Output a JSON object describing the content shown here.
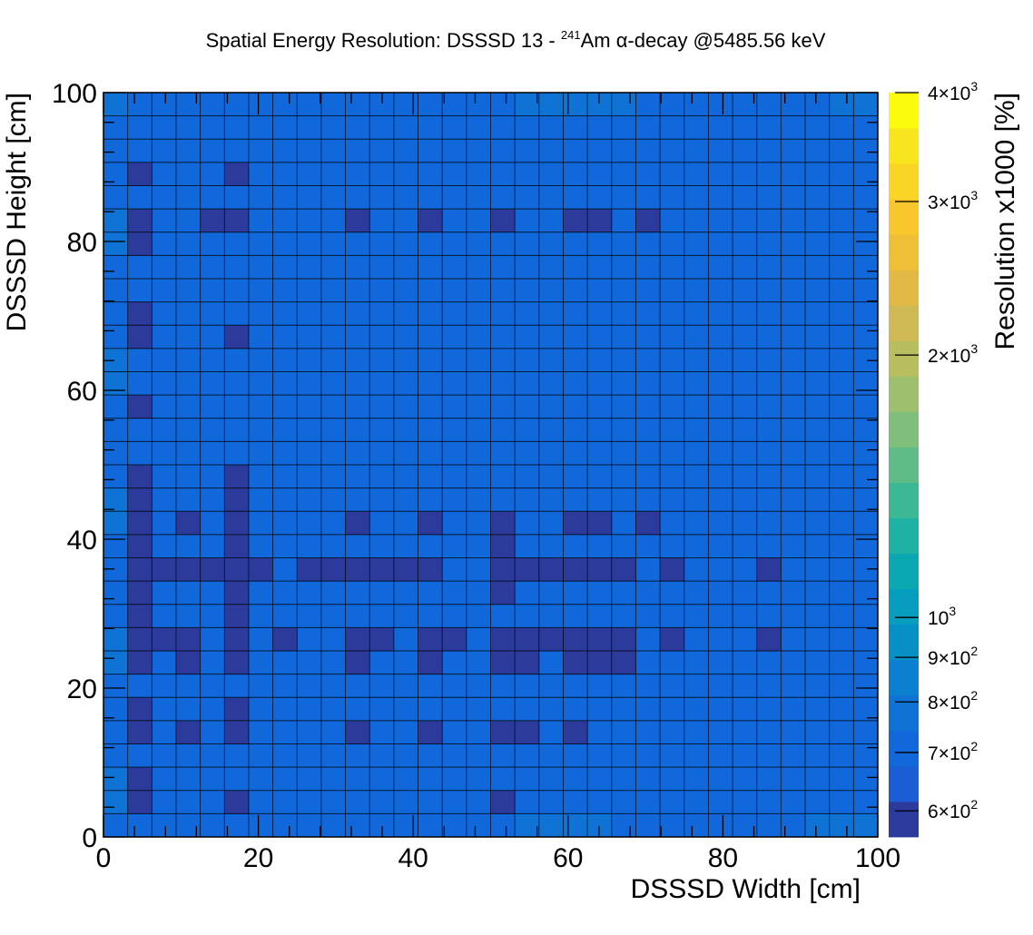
{
  "chart_data": {
    "type": "heatmap",
    "title": {
      "prefix": "Spatial Energy Resolution: DSSSD 13 - ",
      "isotope_mass": "241",
      "isotope_symbol": "Am",
      "suffix": " α-decay @5485.56 keV"
    },
    "xlabel": "DSSSD Width [cm]",
    "ylabel": "DSSSD Height [cm]",
    "zlabel": "Resolution x1000 [%]",
    "xlim": [
      0,
      100
    ],
    "ylim": [
      0,
      100
    ],
    "x_ticks": [
      "0",
      "20",
      "40",
      "60",
      "80",
      "100"
    ],
    "y_ticks": [
      "0",
      "20",
      "40",
      "60",
      "80",
      "100"
    ],
    "zscale": "log",
    "zlim": [
      560,
      4000
    ],
    "z_ticks": [
      {
        "value": 600,
        "mantissa": "6",
        "exp": "2"
      },
      {
        "value": 700,
        "mantissa": "7",
        "exp": "2"
      },
      {
        "value": 800,
        "mantissa": "8",
        "exp": "2"
      },
      {
        "value": 900,
        "mantissa": "9",
        "exp": "2"
      },
      {
        "value": 1000,
        "mantissa": "",
        "exp": "3"
      },
      {
        "value": 2000,
        "mantissa": "2",
        "exp": "3"
      },
      {
        "value": 3000,
        "mantissa": "3",
        "exp": "3"
      },
      {
        "value": 4000,
        "mantissa": "4",
        "exp": "3"
      }
    ],
    "colormap": "parula",
    "palette_colors": [
      "#2b3a9b",
      "#1b5dd4",
      "#1068db",
      "#0f73d6",
      "#0b80d0",
      "#0690c6",
      "#079dbe",
      "#0ca8b2",
      "#1eb1a4",
      "#3db894",
      "#5fbc87",
      "#7fbf7b",
      "#9dbf6e",
      "#b8bd60",
      "#cfb955",
      "#e2b944",
      "#efbf37",
      "#f8c72d",
      "#fbd525",
      "#f9e51d",
      "#fbfb0e"
    ],
    "nx": 32,
    "ny": 32,
    "x_bin_width": 3.125,
    "y_bin_width": 3.125,
    "grid": true,
    "base_value": 680,
    "bright_value": 760,
    "dark_value": 600,
    "bright_cells": [
      [
        0,
        31
      ],
      [
        0,
        26
      ],
      [
        0,
        25
      ],
      [
        0,
        20
      ],
      [
        0,
        19
      ],
      [
        0,
        14
      ],
      [
        0,
        13
      ],
      [
        0,
        8
      ],
      [
        0,
        7
      ],
      [
        0,
        2
      ],
      [
        0,
        1
      ],
      [
        17,
        0
      ],
      [
        18,
        0
      ],
      [
        19,
        0
      ],
      [
        20,
        0
      ],
      [
        17,
        31
      ],
      [
        18,
        31
      ],
      [
        19,
        31
      ],
      [
        20,
        31
      ],
      [
        21,
        31
      ],
      [
        29,
        0
      ],
      [
        30,
        0
      ],
      [
        31,
        0
      ],
      [
        30,
        31
      ],
      [
        31,
        31
      ]
    ],
    "dark_cells": [
      [
        1,
        28
      ],
      [
        5,
        28
      ],
      [
        1,
        26
      ],
      [
        4,
        26
      ],
      [
        5,
        26
      ],
      [
        10,
        26
      ],
      [
        13,
        26
      ],
      [
        16,
        26
      ],
      [
        19,
        26
      ],
      [
        19,
        26
      ],
      [
        20,
        26
      ],
      [
        22,
        26
      ],
      [
        1,
        25
      ],
      [
        1,
        22
      ],
      [
        1,
        21
      ],
      [
        5,
        21
      ],
      [
        1,
        18
      ],
      [
        1,
        15
      ],
      [
        5,
        15
      ],
      [
        1,
        14
      ],
      [
        5,
        14
      ],
      [
        1,
        13
      ],
      [
        3,
        13
      ],
      [
        5,
        13
      ],
      [
        10,
        13
      ],
      [
        13,
        13
      ],
      [
        16,
        13
      ],
      [
        19,
        13
      ],
      [
        20,
        13
      ],
      [
        22,
        13
      ],
      [
        1,
        12
      ],
      [
        5,
        12
      ],
      [
        16,
        12
      ],
      [
        1,
        11
      ],
      [
        2,
        11
      ],
      [
        3,
        11
      ],
      [
        4,
        11
      ],
      [
        5,
        11
      ],
      [
        6,
        11
      ],
      [
        8,
        11
      ],
      [
        9,
        11
      ],
      [
        10,
        11
      ],
      [
        11,
        11
      ],
      [
        12,
        11
      ],
      [
        13,
        11
      ],
      [
        16,
        11
      ],
      [
        17,
        11
      ],
      [
        18,
        11
      ],
      [
        19,
        11
      ],
      [
        20,
        11
      ],
      [
        21,
        11
      ],
      [
        23,
        11
      ],
      [
        27,
        11
      ],
      [
        1,
        10
      ],
      [
        5,
        10
      ],
      [
        16,
        10
      ],
      [
        1,
        9
      ],
      [
        5,
        9
      ],
      [
        1,
        8
      ],
      [
        2,
        8
      ],
      [
        3,
        8
      ],
      [
        5,
        8
      ],
      [
        7,
        8
      ],
      [
        10,
        8
      ],
      [
        11,
        8
      ],
      [
        13,
        8
      ],
      [
        14,
        8
      ],
      [
        16,
        8
      ],
      [
        17,
        8
      ],
      [
        18,
        8
      ],
      [
        19,
        8
      ],
      [
        20,
        8
      ],
      [
        21,
        8
      ],
      [
        23,
        8
      ],
      [
        27,
        8
      ],
      [
        1,
        7
      ],
      [
        3,
        7
      ],
      [
        5,
        7
      ],
      [
        10,
        7
      ],
      [
        13,
        7
      ],
      [
        16,
        7
      ],
      [
        17,
        7
      ],
      [
        19,
        7
      ],
      [
        20,
        7
      ],
      [
        21,
        7
      ],
      [
        1,
        5
      ],
      [
        5,
        5
      ],
      [
        1,
        4
      ],
      [
        3,
        4
      ],
      [
        5,
        4
      ],
      [
        10,
        4
      ],
      [
        13,
        4
      ],
      [
        16,
        4
      ],
      [
        17,
        4
      ],
      [
        19,
        4
      ],
      [
        1,
        2
      ],
      [
        1,
        1
      ],
      [
        5,
        1
      ],
      [
        16,
        1
      ]
    ]
  }
}
